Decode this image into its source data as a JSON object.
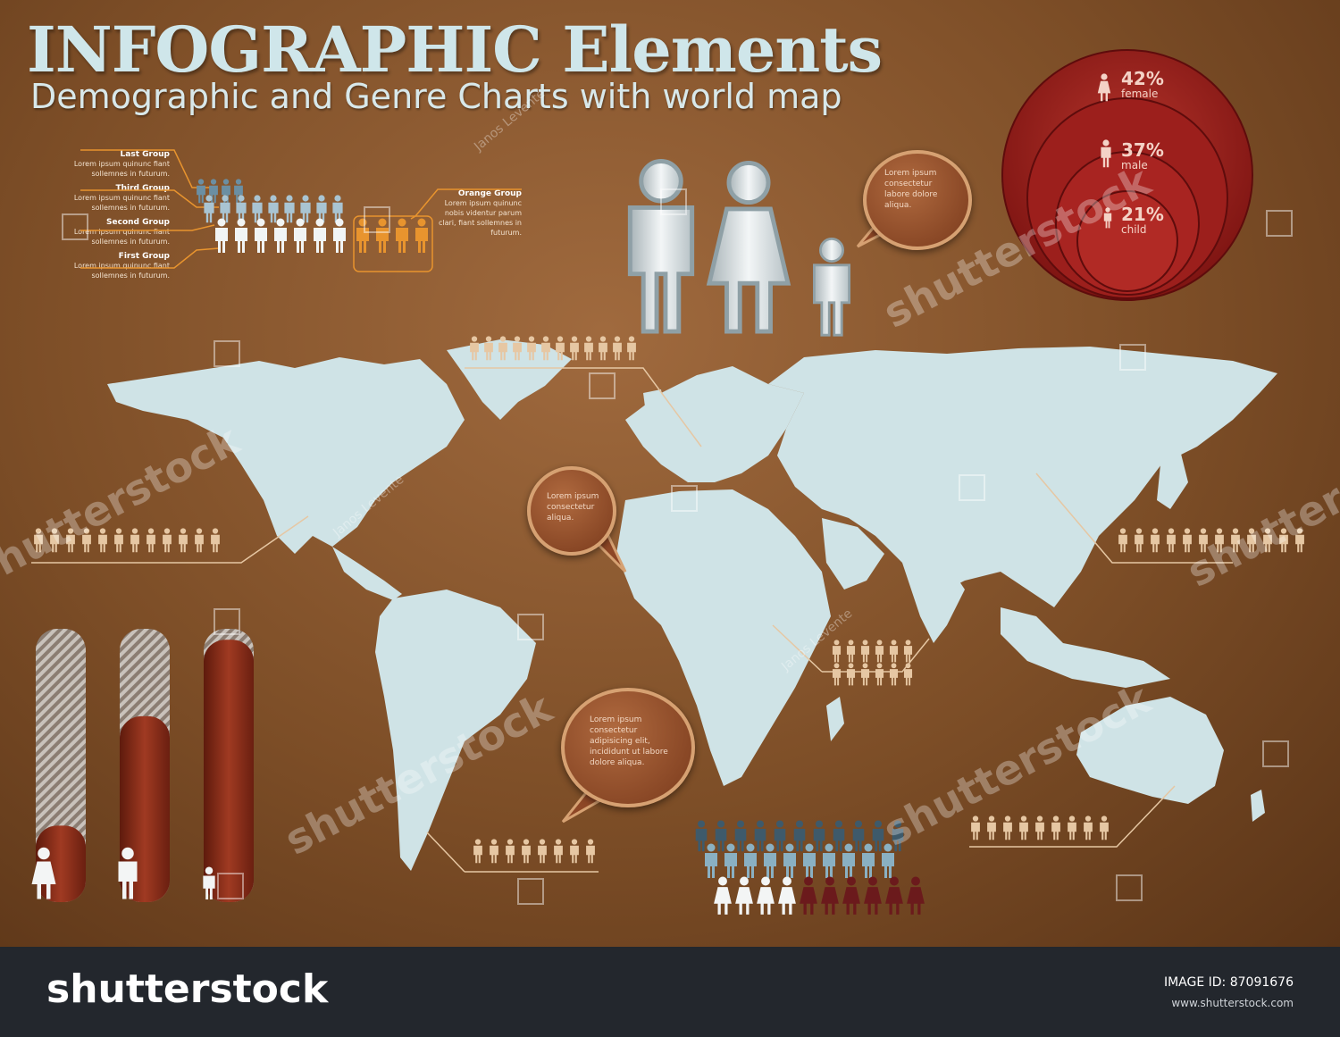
{
  "header": {
    "title": "INFOGRAPHIC Elements",
    "subtitle": "Demographic and Genre Charts with world map"
  },
  "groups": {
    "last": {
      "label": "Last Group",
      "text": "Lorem ipsum quinunc fiant sollemnes in futurum."
    },
    "third": {
      "label": "Third Group",
      "text": "Lorem ipsum quinunc fiant sollemnes in futurum."
    },
    "second": {
      "label": "Second Group",
      "text": "Lorem ipsum quinunc fiant sollemnes in futurum."
    },
    "first": {
      "label": "First Group",
      "text": "Lorem ipsum quinunc fiant sollemnes in futurum."
    },
    "orange": {
      "label": "Orange Group",
      "text": "Lorem ipsum quinunc nobis videntur parum clari, fiant sollemnes in futurum."
    }
  },
  "bubbles": {
    "family": "Lorem ipsum consectetur labore dolore aliqua.",
    "atlantic": "Lorem ipsum consectetur aliqua.",
    "south": "Lorem ipsum consectetur adipisicing elit, incididunt ut labore dolore aliqua."
  },
  "rings": [
    {
      "value": "42%",
      "label": "female"
    },
    {
      "value": "37%",
      "label": "male"
    },
    {
      "value": "21%",
      "label": "child"
    }
  ],
  "bar_levels": {
    "female": 0.28,
    "male": 0.68,
    "child": 0.96
  },
  "colors": {
    "background": "#7d4e27",
    "map": "#cfe3e6",
    "ring": "#a81e1e",
    "bar": "#8a2b1a",
    "orange_group": "#e8942e",
    "people_tan": "#e6c7a3"
  },
  "watermark": {
    "brand": "shutterstock",
    "author": "Janos Levente"
  },
  "footer": {
    "logo": "shutterstock",
    "image_id": "IMAGE ID: 87091676",
    "url": "www.shutterstock.com"
  }
}
